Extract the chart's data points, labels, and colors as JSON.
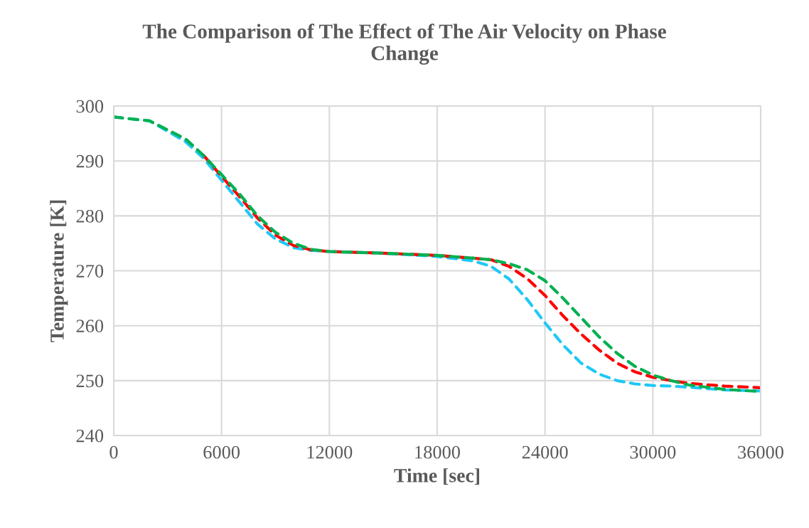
{
  "chart_data": {
    "type": "line",
    "title": "The Comparison of The Effect of The Air Velocity on Phase Change",
    "xlabel": "Time [sec]",
    "ylabel": "Temperature [K]",
    "xlim": [
      0,
      36000
    ],
    "xticks": [
      0,
      6000,
      12000,
      18000,
      24000,
      30000,
      36000
    ],
    "ylim": [
      240,
      300
    ],
    "yticks": [
      240,
      250,
      260,
      270,
      280,
      290,
      300
    ],
    "grid": true,
    "line_style": "dashed",
    "marker": "none",
    "x": [
      0,
      2000,
      4000,
      5000,
      6000,
      7000,
      8000,
      9000,
      10000,
      11000,
      12000,
      15000,
      18000,
      20000,
      21000,
      22000,
      23000,
      24000,
      25000,
      26000,
      27000,
      28000,
      29000,
      30000,
      31000,
      32000,
      34000,
      36000
    ],
    "series": [
      {
        "color": "#1fc8f5",
        "values": [
          298,
          297.3,
          293.5,
          290.5,
          286.5,
          282.5,
          278.5,
          275.8,
          274.2,
          273.7,
          273.5,
          273.2,
          272.6,
          271.8,
          270.8,
          268.5,
          264.8,
          260.5,
          256.5,
          253.2,
          251.2,
          250,
          249.4,
          249.1,
          249,
          248.8,
          248.3,
          248.1
        ]
      },
      {
        "color": "#ff0000",
        "values": [
          null,
          null,
          null,
          291,
          287.2,
          283.5,
          279.6,
          276.5,
          274.6,
          273.8,
          273.5,
          273.2,
          272.8,
          272.3,
          272,
          270.8,
          268.6,
          265.5,
          261.8,
          258.5,
          255.6,
          253.2,
          251.6,
          250.6,
          250,
          249.5,
          249,
          248.7
        ]
      },
      {
        "color": "#00b050",
        "values": [
          298,
          297.3,
          294,
          291,
          287.5,
          284,
          280,
          277,
          275,
          273.9,
          273.5,
          273.2,
          272.8,
          272.3,
          272,
          271.3,
          270.2,
          268.2,
          265,
          261.5,
          258,
          255,
          252.6,
          251,
          250,
          249.2,
          248.4,
          248
        ]
      }
    ]
  }
}
